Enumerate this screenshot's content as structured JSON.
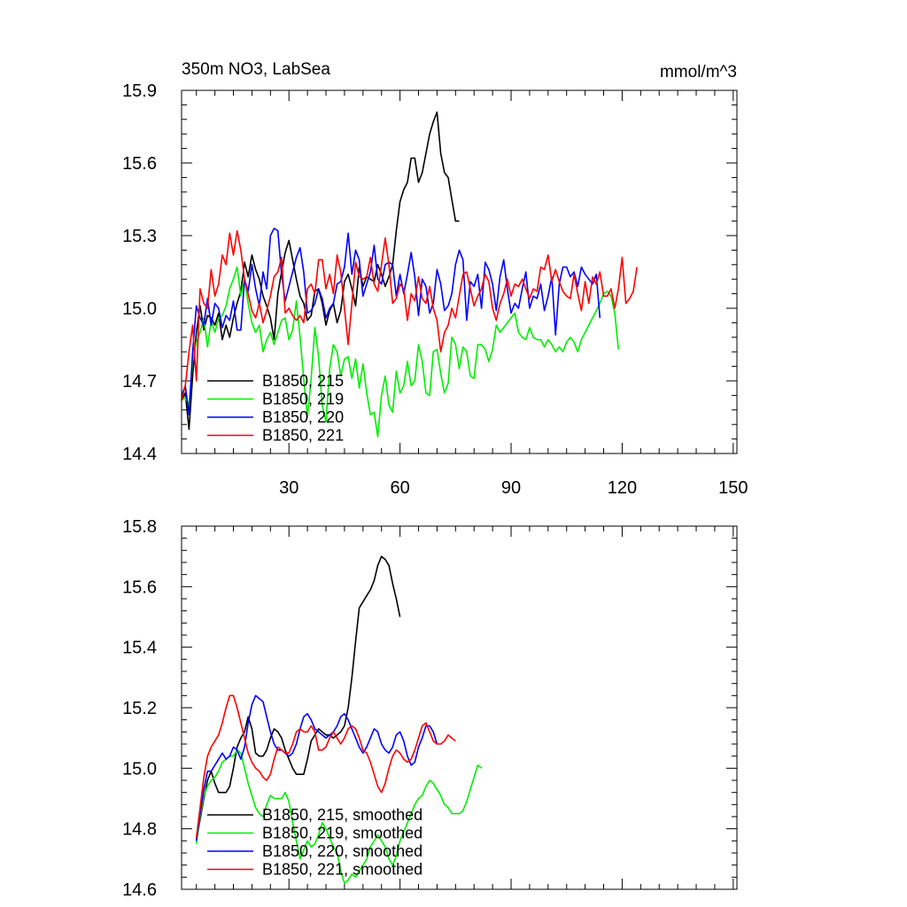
{
  "chart_data": [
    {
      "type": "line",
      "title": "350m NO3, LabSea",
      "units": "mmol/m^3",
      "xlim": [
        1,
        151
      ],
      "ylim": [
        14.4,
        15.9
      ],
      "x_ticks": [
        30,
        60,
        90,
        120,
        150
      ],
      "y_ticks": [
        "14.4",
        "14.7",
        "15.0",
        "15.3",
        "15.6",
        "15.9"
      ],
      "legend_position": "lower-left",
      "series": [
        {
          "name": "B1850, 215",
          "color": "#000000",
          "x_start": 1,
          "values": [
            14.62,
            14.65,
            14.5,
            14.72,
            14.9,
            15.01,
            14.91,
            14.97,
            14.96,
            14.93,
            14.98,
            14.87,
            14.93,
            14.88,
            14.96,
            15.02,
            15.07,
            15.19,
            15.13,
            15.22,
            15.16,
            15.12,
            15.05,
            15.01,
            14.96,
            14.87,
            15.06,
            15.15,
            15.23,
            15.28,
            15.2,
            15.12,
            15.05,
            15.02,
            14.95,
            14.97,
            15.07,
            15.08,
            15.02,
            14.93,
            14.99,
            15.02,
            14.94,
            14.99,
            15.11,
            15.14,
            15.08,
            15.01,
            15.17,
            15.09,
            15.13,
            15.12,
            15.11,
            15.18,
            15.14,
            15.09,
            15.13,
            15.18,
            15.32,
            15.44,
            15.49,
            15.52,
            15.62,
            15.62,
            15.52,
            15.56,
            15.64,
            15.72,
            15.77,
            15.81,
            15.64,
            15.56,
            15.54,
            15.45,
            15.36,
            15.36
          ]
        },
        {
          "name": "B1850, 219",
          "color": "#00ee00",
          "x_start": 1,
          "values": [
            14.62,
            14.63,
            14.6,
            14.78,
            14.86,
            14.9,
            14.96,
            14.84,
            14.95,
            14.9,
            14.96,
            14.97,
            15.01,
            15.08,
            15.12,
            15.17,
            15.05,
            15.12,
            15.02,
            14.94,
            14.9,
            14.93,
            14.82,
            14.87,
            14.9,
            14.85,
            14.9,
            14.95,
            14.96,
            14.87,
            14.91,
            15.03,
            14.88,
            14.71,
            14.55,
            14.71,
            14.92,
            14.8,
            14.6,
            14.53,
            14.75,
            14.85,
            14.82,
            14.72,
            14.79,
            14.8,
            14.71,
            14.79,
            14.67,
            14.77,
            14.65,
            14.56,
            14.57,
            14.47,
            14.64,
            14.72,
            14.6,
            14.57,
            14.74,
            14.65,
            14.68,
            14.78,
            14.68,
            14.7,
            14.85,
            14.78,
            14.65,
            14.64,
            14.82,
            14.83,
            14.73,
            14.65,
            14.69,
            14.88,
            14.85,
            14.75,
            14.84,
            14.82,
            14.72,
            14.71,
            14.85,
            14.85,
            14.83,
            14.78,
            14.83,
            14.93,
            14.9,
            14.92,
            14.94,
            14.96,
            14.98,
            14.9,
            14.88,
            14.87,
            14.92,
            14.88,
            14.87,
            14.87,
            14.84,
            14.87,
            14.85,
            14.82,
            14.84,
            14.82,
            14.86,
            14.88,
            14.86,
            14.82,
            14.87,
            14.9,
            14.93,
            14.96,
            14.99,
            15.02,
            15.06,
            15.07,
            15.05,
            14.98,
            14.83
          ]
        },
        {
          "name": "B1850, 220",
          "color": "#0000ff",
          "x_start": 1,
          "values": [
            14.64,
            14.68,
            14.56,
            14.82,
            15.01,
            14.96,
            14.93,
            15.04,
            14.93,
            15.02,
            15.0,
            14.92,
            14.97,
            14.95,
            15.03,
            14.91,
            14.91,
            15.12,
            15.07,
            15.18,
            15.08,
            15.01,
            15.15,
            15.08,
            15.3,
            15.33,
            15.32,
            15.14,
            15.03,
            15.09,
            15.15,
            15.21,
            15.25,
            15.15,
            14.98,
            14.99,
            15.02,
            15.08,
            15.04,
            14.96,
            15.0,
            15.02,
            15.1,
            15.11,
            15.17,
            15.31,
            15.14,
            15.24,
            15.2,
            15.05,
            15.1,
            15.15,
            15.26,
            15.12,
            15.1,
            15.18,
            15.19,
            15.18,
            15.05,
            15.14,
            15.06,
            15.14,
            15.23,
            15.13,
            14.97,
            15.12,
            15.09,
            14.98,
            15.02,
            15.16,
            15.1,
            14.99,
            15.01,
            15.06,
            15.18,
            15.24,
            15.2,
            14.95,
            15.11,
            15.09,
            15.14,
            15.0,
            15.19,
            15.16,
            15.1,
            14.99,
            15.13,
            15.2,
            15.08,
            14.98,
            15.02,
            15.0,
            15.08,
            15.15,
            15.0,
            15.05,
            15.04,
            15.1,
            14.99,
            15.05,
            15.13,
            14.89,
            15.1,
            15.17,
            15.17,
            15.13,
            15.15,
            15.09,
            15.17,
            15.14,
            15.12,
            15.1,
            15.14,
            14.96
          ]
        },
        {
          "name": "B1850, 221",
          "color": "#ff0000",
          "x_start": 1,
          "values": [
            14.62,
            14.68,
            14.82,
            14.93,
            14.7,
            15.08,
            15.02,
            15.0,
            15.16,
            15.05,
            15.1,
            15.22,
            15.18,
            15.31,
            15.22,
            15.32,
            15.24,
            15.12,
            15.06,
            14.99,
            14.96,
            15.02,
            14.94,
            14.99,
            15.05,
            15.13,
            15.15,
            15.21,
            14.98,
            15.0,
            14.97,
            14.95,
            14.97,
            14.94,
            15.08,
            15.1,
            15.06,
            15.2,
            15.2,
            15.08,
            15.14,
            15.06,
            15.22,
            15.15,
            15.0,
            14.85,
            15.02,
            15.19,
            15.13,
            15.12,
            15.13,
            15.21,
            15.1,
            15.07,
            15.18,
            15.29,
            15.18,
            15.02,
            15.04,
            15.1,
            15.08,
            14.95,
            15.06,
            15.03,
            15.13,
            15.04,
            15.02,
            15.09,
            15.0,
            14.95,
            14.82,
            14.9,
            14.93,
            15.0,
            14.96,
            15.05,
            15.14,
            15.15,
            15.08,
            15.01,
            15.05,
            15.08,
            15.14,
            15.11,
            15.0,
            14.95,
            15.02,
            15.06,
            15.12,
            15.05,
            15.1,
            15.09,
            15.12,
            15.08,
            15.04,
            15.08,
            15.07,
            15.17,
            15.16,
            15.22,
            15.11,
            15.16,
            15.11,
            15.07,
            15.05,
            15.04,
            15.14,
            15.06,
            14.99,
            15.11,
            15.02,
            15.13,
            15.1,
            15.15,
            15.05,
            15.05,
            15.08,
            15.0,
            15.08,
            15.21,
            15.02,
            15.04,
            15.07,
            15.17
          ]
        }
      ]
    },
    {
      "type": "line",
      "xlim": [
        1,
        151
      ],
      "ylim": [
        14.6,
        15.8
      ],
      "x_ticks": [
        30,
        60,
        90,
        120,
        150
      ],
      "y_ticks": [
        "14.6",
        "14.8",
        "15.0",
        "15.2",
        "15.4",
        "15.6",
        "15.8"
      ],
      "legend_position": "lower-left",
      "series": [
        {
          "name": "B1850, 215, smoothed",
          "color": "#000000",
          "x_start": 5,
          "values": [
            14.76,
            14.83,
            14.9,
            14.96,
            14.99,
            14.95,
            14.92,
            14.92,
            14.92,
            14.94,
            15.0,
            15.07,
            15.1,
            15.12,
            15.17,
            15.13,
            15.05,
            15.04,
            15.04,
            15.06,
            15.1,
            15.13,
            15.12,
            15.1,
            15.06,
            15.03,
            15.0,
            14.98,
            14.98,
            14.98,
            15.03,
            15.09,
            15.11,
            15.13,
            15.12,
            15.11,
            15.11,
            15.1,
            15.11,
            15.12,
            15.14,
            15.2,
            15.3,
            15.42,
            15.53,
            15.55,
            15.57,
            15.59,
            15.62,
            15.67,
            15.7,
            15.69,
            15.67,
            15.61,
            15.56,
            15.5
          ]
        },
        {
          "name": "B1850, 219, smoothed",
          "color": "#00ee00",
          "x_start": 5,
          "values": [
            14.75,
            14.84,
            14.91,
            14.94,
            14.96,
            14.97,
            14.99,
            15.02,
            15.03,
            15.04,
            15.04,
            15.06,
            15.05,
            15.0,
            14.95,
            14.91,
            14.87,
            14.85,
            14.84,
            14.88,
            14.91,
            14.9,
            14.9,
            14.9,
            14.92,
            14.89,
            14.82,
            14.76,
            14.7,
            14.73,
            14.76,
            14.74,
            14.75,
            14.78,
            14.82,
            14.8,
            14.77,
            14.74,
            14.72,
            14.66,
            14.62,
            14.63,
            14.65,
            14.64,
            14.66,
            14.68,
            14.7,
            14.74,
            14.76,
            14.78,
            14.76,
            14.74,
            14.7,
            14.68,
            14.71,
            14.76,
            14.79,
            14.82,
            14.85,
            14.88,
            14.9,
            14.91,
            14.94,
            14.96,
            14.95,
            14.93,
            14.91,
            14.88,
            14.87,
            14.85,
            14.85,
            14.85,
            14.86,
            14.89,
            14.93,
            14.97,
            15.01,
            15.0
          ]
        },
        {
          "name": "B1850, 220, smoothed",
          "color": "#0000ff",
          "x_start": 5,
          "values": [
            14.76,
            14.85,
            14.93,
            14.99,
            14.99,
            15.01,
            15.03,
            15.05,
            15.03,
            15.04,
            15.07,
            15.06,
            15.03,
            15.07,
            15.15,
            15.21,
            15.24,
            15.23,
            15.22,
            15.17,
            15.12,
            15.08,
            15.06,
            15.06,
            15.05,
            15.04,
            15.05,
            15.08,
            15.13,
            15.17,
            15.18,
            15.16,
            15.13,
            15.12,
            15.11,
            15.1,
            15.11,
            15.12,
            15.14,
            15.17,
            15.18,
            15.16,
            15.13,
            15.1,
            15.07,
            15.05,
            15.07,
            15.1,
            15.13,
            15.12,
            15.08,
            15.06,
            15.05,
            15.07,
            15.11,
            15.12,
            15.09,
            15.04,
            15.01,
            15.02,
            15.07,
            15.1,
            15.14,
            15.14,
            15.12,
            15.08
          ]
        },
        {
          "name": "B1850, 221, smoothed",
          "color": "#ff0000",
          "x_start": 5,
          "values": [
            14.77,
            14.87,
            14.97,
            15.04,
            15.07,
            15.09,
            15.11,
            15.15,
            15.2,
            15.24,
            15.24,
            15.2,
            15.15,
            15.1,
            15.05,
            15.02,
            15.0,
            14.99,
            14.97,
            14.96,
            14.98,
            15.03,
            15.07,
            15.06,
            15.05,
            15.05,
            15.08,
            15.12,
            15.13,
            15.12,
            15.12,
            15.14,
            15.12,
            15.06,
            15.06,
            15.07,
            15.1,
            15.12,
            15.1,
            15.08,
            15.1,
            15.13,
            15.14,
            15.13,
            15.1,
            15.06,
            15.05,
            15.02,
            14.98,
            14.94,
            14.92,
            14.95,
            15.0,
            15.04,
            15.06,
            15.05,
            15.03,
            15.02,
            15.03,
            15.06,
            15.1,
            15.14,
            15.15,
            15.12,
            15.09,
            15.08,
            15.08,
            15.09,
            15.11,
            15.1,
            15.09
          ]
        }
      ]
    }
  ]
}
